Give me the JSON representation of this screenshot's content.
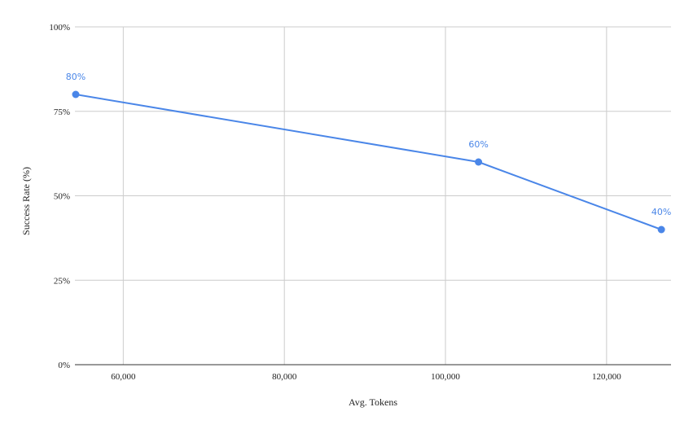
{
  "chart_data": {
    "type": "line",
    "xlabel": "Avg. Tokens",
    "ylabel": "Success Rate (%)",
    "xlim": [
      54000,
      128000
    ],
    "ylim": [
      0,
      100
    ],
    "x_ticks": [
      60000,
      80000,
      100000,
      120000
    ],
    "x_tick_labels": [
      "60,000",
      "80,000",
      "100,000",
      "120,000"
    ],
    "y_ticks": [
      0,
      25,
      50,
      75,
      100
    ],
    "y_tick_labels": [
      "0%",
      "25%",
      "50%",
      "75%",
      "100%"
    ],
    "grid": true,
    "legend": "none",
    "color": "#4a86e8",
    "series": [
      {
        "points": [
          {
            "x": 54100,
            "y": 80,
            "label": "80%"
          },
          {
            "x": 104100,
            "y": 60,
            "label": "60%"
          },
          {
            "x": 126800,
            "y": 40,
            "label": "40%"
          }
        ]
      }
    ]
  }
}
